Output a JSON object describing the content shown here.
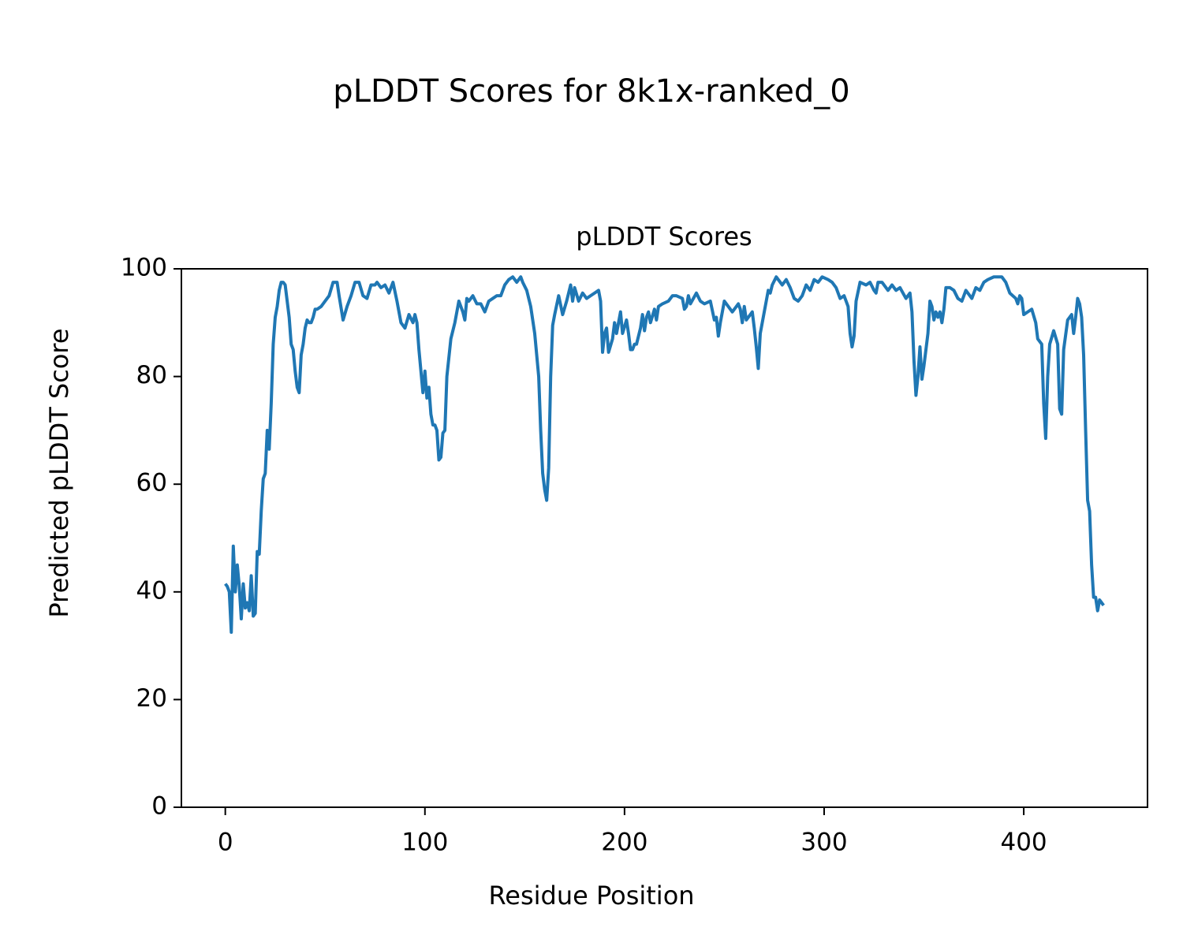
{
  "chart_data": {
    "type": "line",
    "title": "pLDDT Scores for 8k1x-ranked_0",
    "subtitle": "pLDDT Scores",
    "x_label": "Residue Position",
    "y_label": "Predicted pLDDT Score",
    "x": [
      0,
      1,
      2,
      3,
      4,
      5,
      6,
      7,
      8,
      9,
      10,
      11,
      12,
      13,
      14,
      15,
      16,
      17,
      18,
      19,
      20,
      21,
      22,
      23,
      24,
      25,
      26,
      27,
      28,
      29,
      30,
      31,
      32,
      33,
      34,
      35,
      36,
      37,
      38,
      39,
      40,
      41,
      42,
      43,
      44,
      45,
      46,
      48,
      50,
      52,
      54,
      56,
      57,
      59,
      61,
      63,
      65,
      67,
      69,
      71,
      73,
      75,
      76,
      78,
      80,
      82,
      84,
      86,
      88,
      90,
      92,
      94,
      95,
      96,
      97,
      99,
      100,
      101,
      102,
      103,
      104,
      105,
      106,
      107,
      108,
      109,
      110,
      111,
      113,
      115,
      117,
      119,
      120,
      121,
      122,
      124,
      126,
      128,
      130,
      132,
      134,
      136,
      138,
      140,
      142,
      144,
      146,
      148,
      149,
      151,
      153,
      155,
      157,
      158,
      159,
      160,
      161,
      162,
      163,
      164,
      165,
      167,
      169,
      171,
      173,
      174,
      175,
      177,
      179,
      181,
      183,
      185,
      187,
      188,
      189,
      190,
      191,
      192,
      194,
      195,
      196,
      197,
      198,
      199,
      201,
      202,
      203,
      204,
      205,
      206,
      208,
      209,
      210,
      211,
      212,
      213,
      215,
      216,
      217,
      219,
      222,
      224,
      226,
      229,
      230,
      231,
      232,
      233,
      236,
      238,
      240,
      243,
      245,
      246,
      247,
      248,
      250,
      252,
      254,
      257,
      258,
      259,
      260,
      261,
      264,
      265,
      266,
      267,
      268,
      270,
      272,
      273,
      274,
      276,
      279,
      281,
      283,
      285,
      287,
      289,
      291,
      293,
      295,
      297,
      299,
      302,
      304,
      306,
      308,
      310,
      312,
      313,
      314,
      315,
      316,
      318,
      321,
      323,
      325,
      326,
      327,
      329,
      332,
      334,
      336,
      338,
      341,
      343,
      344,
      345,
      346,
      347,
      348,
      349,
      350,
      352,
      353,
      354,
      355,
      356,
      357,
      358,
      359,
      360,
      361,
      363,
      365,
      367,
      369,
      371,
      374,
      376,
      378,
      380,
      382,
      385,
      387,
      389,
      391,
      393,
      396,
      397,
      398,
      399,
      400,
      402,
      404,
      406,
      407,
      409,
      410,
      411,
      412,
      413,
      415,
      417,
      418,
      419,
      420,
      422,
      424,
      425,
      426,
      427,
      428,
      429,
      430,
      431,
      432,
      433,
      434,
      435,
      436,
      437,
      438,
      440
    ],
    "series": [
      {
        "color": "#1f77b4",
        "values": [
          41.5,
          41,
          40,
          32.5,
          48.5,
          40,
          45,
          41,
          35,
          41.5,
          37,
          38,
          36.5,
          43,
          35.5,
          36,
          47.5,
          47,
          55,
          61,
          62,
          70,
          66.5,
          75,
          86,
          91,
          93,
          96,
          97.5,
          97.5,
          97,
          94,
          91,
          86,
          85,
          81,
          78,
          77,
          84,
          86,
          89,
          90.5,
          90,
          90,
          91,
          92.5,
          92.5,
          93,
          94,
          95,
          97.5,
          97.5,
          95,
          90.5,
          93,
          95,
          97.5,
          97.5,
          95,
          94.5,
          97,
          97,
          97.5,
          96.5,
          97,
          95.5,
          97.5,
          94,
          90,
          89,
          91.5,
          90,
          91.5,
          90,
          85,
          77,
          81,
          76,
          78,
          73,
          71,
          71,
          70,
          64.5,
          65,
          69.5,
          70,
          80,
          87,
          90,
          94,
          92,
          90.5,
          94.5,
          94,
          95,
          93.5,
          93.5,
          92,
          94,
          94.5,
          95,
          95,
          97,
          98,
          98.5,
          97.5,
          98.5,
          97.5,
          96,
          93,
          88,
          80,
          70,
          62,
          59,
          57,
          63,
          80,
          89.5,
          91.5,
          95,
          91.5,
          94,
          97,
          94,
          96.5,
          94,
          95.5,
          94.5,
          95,
          95.5,
          96,
          94,
          84.5,
          88,
          89,
          84.5,
          87,
          90,
          88,
          90,
          92,
          88,
          90.5,
          88,
          85,
          85,
          86,
          86,
          89,
          91.5,
          88.5,
          91,
          92,
          90,
          92.5,
          90.5,
          93,
          93.5,
          94,
          95,
          95,
          94.5,
          92.5,
          93,
          95,
          93.5,
          95.5,
          94,
          93.5,
          94,
          90.5,
          91,
          87.5,
          90,
          94,
          93,
          92,
          93.5,
          92.5,
          90,
          93,
          90.5,
          92,
          89,
          85.5,
          81.5,
          88,
          92,
          96,
          95.5,
          97,
          98.5,
          97,
          98,
          96.5,
          94.5,
          94,
          95,
          97,
          96,
          98,
          97.5,
          98.5,
          98,
          97.5,
          96.5,
          94.5,
          95,
          93,
          88,
          85.5,
          87.5,
          94,
          97.5,
          97,
          97.5,
          96,
          95.5,
          97.5,
          97.5,
          96,
          97,
          96,
          96.5,
          94.5,
          95.5,
          92,
          83,
          76.5,
          80,
          85.5,
          79.5,
          82,
          88,
          94,
          93,
          90.5,
          92,
          91,
          92,
          90,
          92.5,
          96.5,
          96.5,
          96,
          94.5,
          94,
          96,
          94.5,
          96.5,
          96,
          97.5,
          98,
          98.5,
          98.5,
          98.5,
          97.5,
          95.5,
          94.5,
          93.5,
          95,
          94.5,
          91.5,
          92,
          92.5,
          90,
          87,
          86,
          75,
          68.5,
          80,
          86,
          88.5,
          86,
          74,
          73,
          85,
          90.5,
          91.5,
          88,
          91,
          94.5,
          93.5,
          91,
          84,
          70,
          57,
          55,
          45,
          39,
          39,
          36.5,
          38.5,
          37.5
        ]
      }
    ],
    "xlim": [
      -22,
      462
    ],
    "ylim": [
      0,
      100
    ],
    "xticks": [
      0,
      100,
      200,
      300,
      400
    ],
    "yticks": [
      0,
      20,
      40,
      60,
      80,
      100
    ],
    "grid": false
  }
}
